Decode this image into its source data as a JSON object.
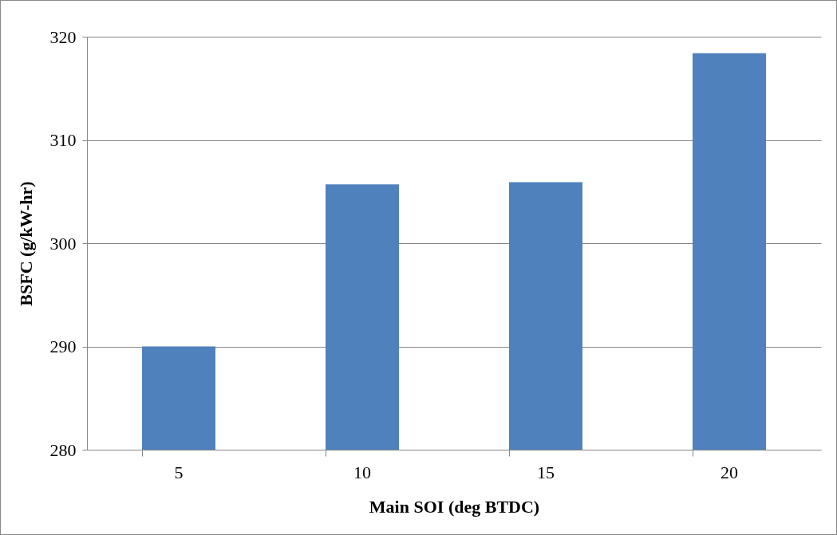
{
  "chart_data": {
    "type": "bar",
    "xlabel": "Main SOI (deg BTDC)",
    "ylabel": "BSFC (g/kW-hr)",
    "categories": [
      "5",
      "10",
      "15",
      "20"
    ],
    "values": [
      290.0,
      305.7,
      305.9,
      318.4
    ],
    "color": "#4f81bd",
    "ylim": [
      280,
      320
    ],
    "yticks": [
      280,
      290,
      300,
      310,
      320
    ],
    "grid": "y"
  }
}
